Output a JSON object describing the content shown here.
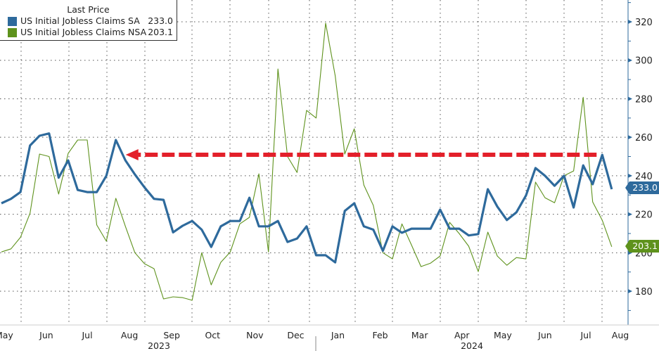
{
  "legend": {
    "title": "Last Price",
    "items": [
      {
        "name": "US Initial Jobless Claims SA",
        "value": "233.0",
        "color": "#2e6a9c"
      },
      {
        "name": "US Initial Jobless Claims NSA",
        "value": "203.1",
        "color": "#5e921c"
      }
    ]
  },
  "value_tags": {
    "sa": "233.0",
    "nsa": "203.1"
  },
  "chart_data": {
    "type": "line",
    "title": "",
    "xlabel": "",
    "ylabel": "",
    "ylim": [
      165,
      330
    ],
    "y_ticks": [
      180,
      200,
      220,
      240,
      260,
      280,
      300,
      320
    ],
    "y_axis_side": "right",
    "grid": true,
    "legend_position": "top-left",
    "x_tick_labels": [
      {
        "label": "May",
        "date": "2023-05-15"
      },
      {
        "label": "Jun",
        "date": "2023-06-15"
      },
      {
        "label": "Jul",
        "date": "2023-07-15"
      },
      {
        "label": "Aug",
        "date": "2023-08-15"
      },
      {
        "label": "Sep",
        "date": "2023-09-15"
      },
      {
        "label": "Oct",
        "date": "2023-10-15"
      },
      {
        "label": "Nov",
        "date": "2023-11-15"
      },
      {
        "label": "Dec",
        "date": "2023-12-15"
      },
      {
        "label": "Jan",
        "date": "2024-01-15"
      },
      {
        "label": "Feb",
        "date": "2024-02-15"
      },
      {
        "label": "Mar",
        "date": "2024-03-15"
      },
      {
        "label": "Apr",
        "date": "2024-04-15"
      },
      {
        "label": "May",
        "date": "2024-05-15"
      },
      {
        "label": "Jun",
        "date": "2024-06-15"
      },
      {
        "label": "Jul",
        "date": "2024-07-15"
      },
      {
        "label": "Aug",
        "date": "2024-08-15"
      }
    ],
    "year_labels": [
      "2023",
      "2024"
    ],
    "x": [
      "2023-05-13",
      "2023-05-20",
      "2023-05-27",
      "2023-06-03",
      "2023-06-10",
      "2023-06-17",
      "2023-06-24",
      "2023-07-01",
      "2023-07-08",
      "2023-07-15",
      "2023-07-22",
      "2023-07-29",
      "2023-08-05",
      "2023-08-12",
      "2023-08-19",
      "2023-08-26",
      "2023-09-02",
      "2023-09-09",
      "2023-09-16",
      "2023-09-23",
      "2023-09-30",
      "2023-10-07",
      "2023-10-14",
      "2023-10-21",
      "2023-10-28",
      "2023-11-04",
      "2023-11-11",
      "2023-11-18",
      "2023-11-25",
      "2023-12-02",
      "2023-12-09",
      "2023-12-16",
      "2023-12-23",
      "2023-12-30",
      "2024-01-06",
      "2024-01-13",
      "2024-01-20",
      "2024-01-27",
      "2024-02-03",
      "2024-02-10",
      "2024-02-17",
      "2024-02-24",
      "2024-03-02",
      "2024-03-09",
      "2024-03-16",
      "2024-03-23",
      "2024-03-30",
      "2024-04-06",
      "2024-04-13",
      "2024-04-20",
      "2024-04-27",
      "2024-05-04",
      "2024-05-11",
      "2024-05-18",
      "2024-05-25",
      "2024-06-01",
      "2024-06-08",
      "2024-06-15",
      "2024-06-22",
      "2024-06-29",
      "2024-07-06",
      "2024-07-13",
      "2024-07-20",
      "2024-07-27",
      "2024-08-03"
    ],
    "series": [
      {
        "name": "US Initial Jobless Claims SA",
        "color": "#2e6a9c",
        "values": [
          225.7,
          228,
          231.5,
          255.7,
          260.8,
          262,
          239,
          248,
          232.6,
          231.5,
          231.5,
          240,
          258.6,
          248,
          240.7,
          234,
          228,
          227.5,
          210.6,
          214,
          216.5,
          212,
          203,
          213.7,
          216.5,
          216.5,
          228.6,
          213.7,
          213.7,
          216.5,
          205.6,
          207.4,
          213.7,
          198.7,
          198.7,
          195,
          221.7,
          225.7,
          213.7,
          212,
          201,
          213.7,
          210.4,
          212.5,
          212.5,
          212.5,
          222.4,
          212.5,
          212.5,
          209,
          209.7,
          233,
          224,
          217,
          221,
          229.7,
          244,
          240,
          234.8,
          240,
          223.5,
          245.4,
          235.6,
          250.9,
          233.0
        ]
      },
      {
        "name": "US Initial Jobless Claims NSA",
        "color": "#5e921c",
        "values": [
          200.4,
          202,
          208,
          220.5,
          251.3,
          250,
          230.5,
          251.6,
          258.6,
          258.6,
          214.4,
          206,
          228.3,
          213.7,
          200,
          194.3,
          191.7,
          176,
          177.1,
          176.7,
          175.3,
          200,
          183.3,
          195,
          200.4,
          215,
          218.4,
          241,
          200.4,
          295.5,
          250,
          241.7,
          274,
          270,
          319.3,
          292,
          251.3,
          264.4,
          235.2,
          224.6,
          200,
          196.8,
          215,
          204,
          192.8,
          194.6,
          198.3,
          215.8,
          210,
          203.4,
          190.2,
          210.7,
          198.3,
          193.5,
          197.5,
          196.8,
          236.7,
          228.6,
          226,
          240,
          242.5,
          280.8,
          226.4,
          216.9,
          203.1
        ]
      }
    ],
    "annotations": [
      {
        "type": "dashed-arrow",
        "color": "#e3202a",
        "y": 250.9,
        "from_date": "2024-07-27",
        "to_date": "2023-08-05"
      }
    ]
  }
}
